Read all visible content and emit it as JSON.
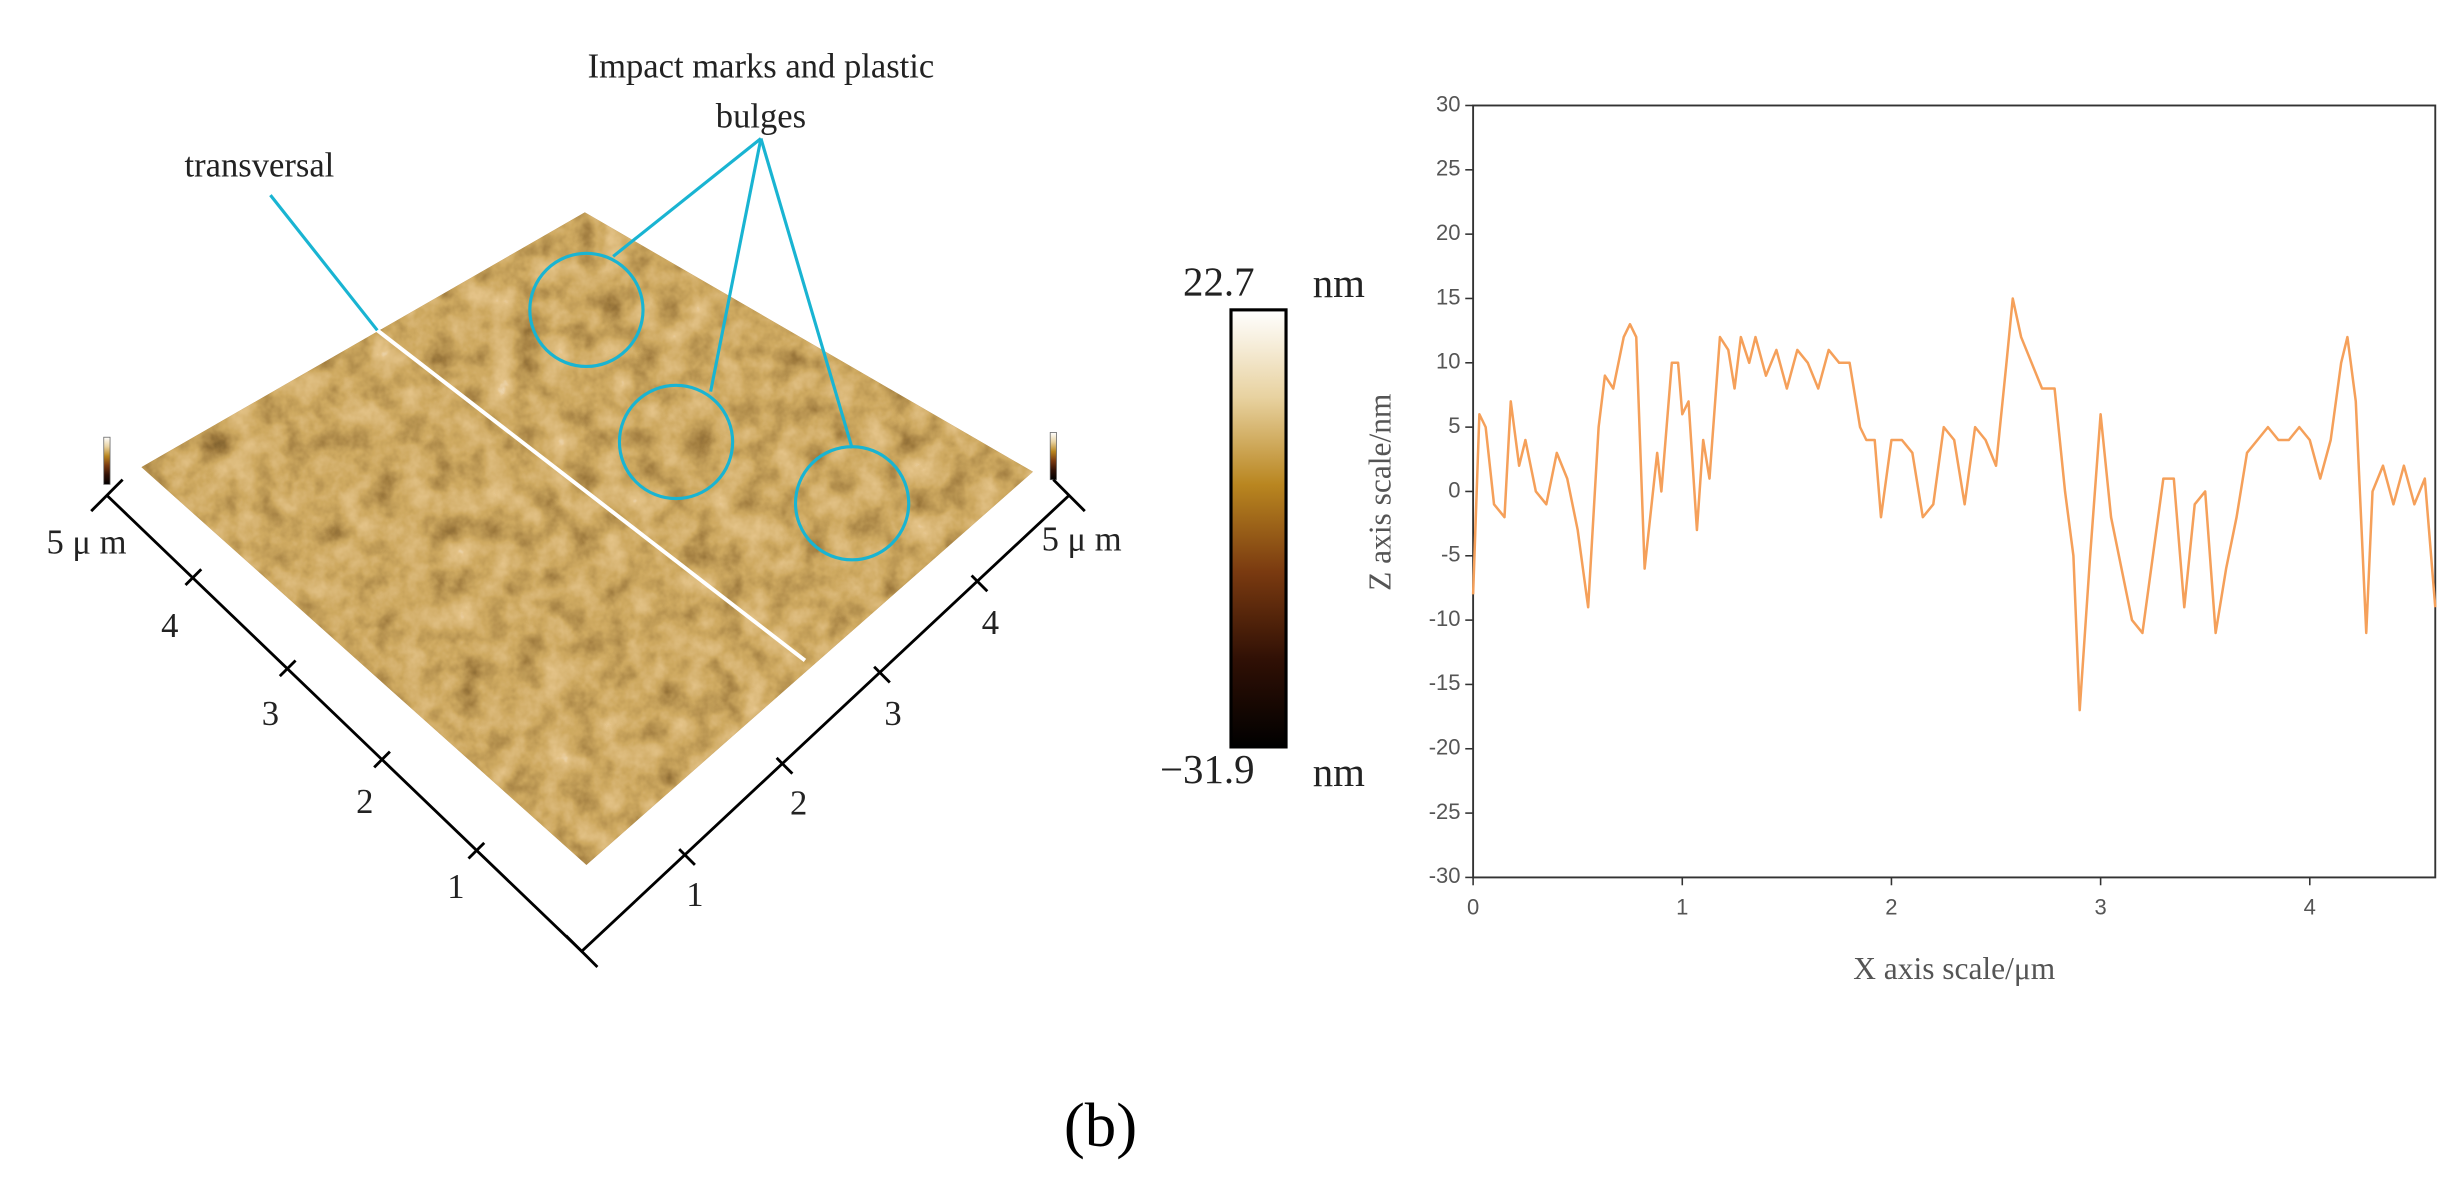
{
  "chart_data": {
    "type": "line",
    "xlabel": "X axis scale/μm",
    "ylabel": "Z axis scale/nm",
    "x": [
      0,
      0.03,
      0.06,
      0.1,
      0.15,
      0.18,
      0.22,
      0.25,
      0.3,
      0.35,
      0.4,
      0.45,
      0.5,
      0.55,
      0.6,
      0.63,
      0.67,
      0.72,
      0.75,
      0.78,
      0.82,
      0.88,
      0.9,
      0.95,
      0.98,
      1.0,
      1.03,
      1.07,
      1.1,
      1.13,
      1.18,
      1.22,
      1.25,
      1.28,
      1.32,
      1.35,
      1.4,
      1.45,
      1.5,
      1.55,
      1.6,
      1.65,
      1.7,
      1.75,
      1.8,
      1.85,
      1.88,
      1.92,
      1.95,
      2.0,
      2.05,
      2.1,
      2.15,
      2.2,
      2.25,
      2.3,
      2.35,
      2.4,
      2.45,
      2.5,
      2.55,
      2.58,
      2.62,
      2.67,
      2.72,
      2.78,
      2.83,
      2.87,
      2.9,
      2.95,
      3.0,
      3.05,
      3.1,
      3.15,
      3.2,
      3.25,
      3.3,
      3.35,
      3.4,
      3.45,
      3.5,
      3.55,
      3.6,
      3.65,
      3.7,
      3.75,
      3.8,
      3.85,
      3.9,
      3.95,
      4.0,
      4.05,
      4.1,
      4.15,
      4.18,
      4.22,
      4.27,
      4.3,
      4.35,
      4.4,
      4.45,
      4.5,
      4.55,
      4.6
    ],
    "values": [
      -8,
      6,
      5,
      -1,
      -2,
      7,
      2,
      4,
      0,
      -1,
      3,
      1,
      -3,
      -9,
      5,
      9,
      8,
      12,
      13,
      12,
      -6,
      3,
      0,
      10,
      10,
      6,
      7,
      -3,
      4,
      1,
      12,
      11,
      8,
      12,
      10,
      12,
      9,
      11,
      8,
      11,
      10,
      8,
      11,
      10,
      10,
      5,
      4,
      4,
      -2,
      4,
      4,
      3,
      -2,
      -1,
      5,
      4,
      -1,
      5,
      4,
      2,
      10,
      15,
      12,
      10,
      8,
      8,
      0,
      -5,
      -17,
      -5,
      6,
      -2,
      -6,
      -10,
      -11,
      -5,
      1,
      1,
      -9,
      -1,
      0,
      -11,
      -6,
      -2,
      3,
      4,
      5,
      4,
      4,
      5,
      4,
      1,
      4,
      10,
      12,
      7,
      -11,
      0,
      2,
      -1,
      2,
      -1,
      1,
      -9
    ],
    "color": "#f5a05a",
    "xlim": [
      0,
      4.6
    ],
    "ylim": [
      -30,
      30
    ],
    "xticks": [
      0,
      1,
      2,
      3,
      4
    ],
    "yticks": [
      -30,
      -25,
      -20,
      -15,
      -10,
      -5,
      0,
      5,
      10,
      15,
      20,
      25,
      30
    ]
  },
  "surface_image": {
    "annotations": [
      "Impact marks and plastic",
      "bulges",
      "transversal"
    ],
    "colorbar": {
      "max": "22.7",
      "min": "−31.9",
      "unit": "nm"
    },
    "left_axis_ticks": [
      "1",
      "2",
      "3",
      "4",
      "5 μ m"
    ],
    "right_axis_ticks": [
      "1",
      "2",
      "3",
      "4",
      "5 μ m"
    ]
  },
  "panel_label": "(b)"
}
